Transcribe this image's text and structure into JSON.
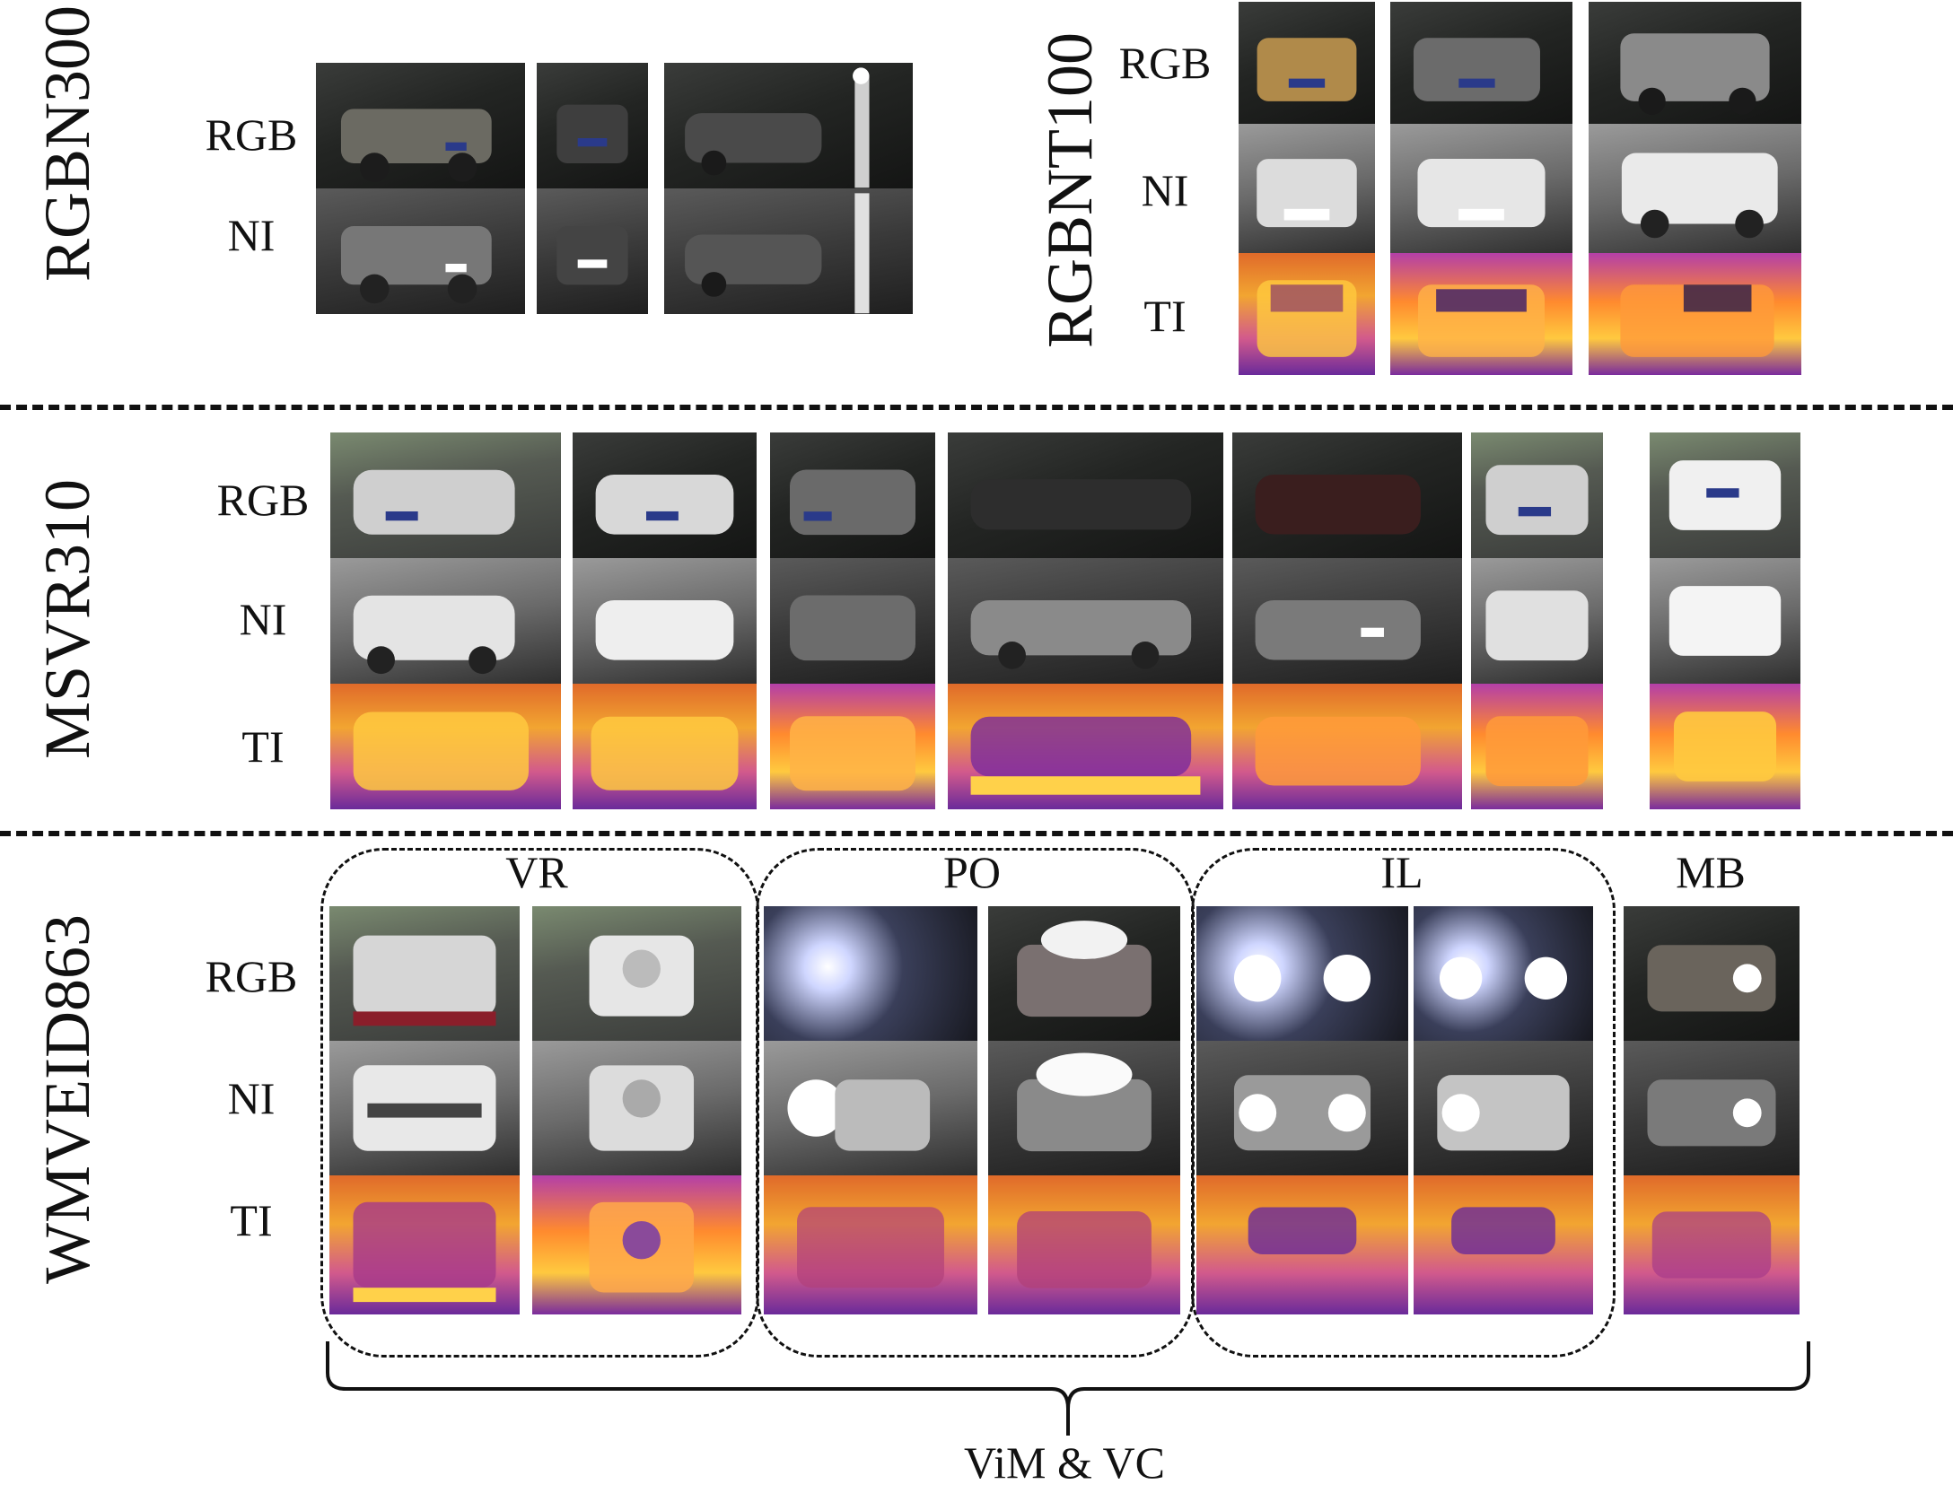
{
  "datasets": {
    "rgbn300": "RGBN300",
    "rgbnt100": "RGBNT100",
    "msvr310": "MSVR310",
    "wmveid863": "WMVEID863"
  },
  "modalities": {
    "rgb": "RGB",
    "ni": "NI",
    "ti": "TI"
  },
  "groups": {
    "vr": "VR",
    "po": "PO",
    "il": "IL",
    "mb": "MB"
  },
  "brace_label": "ViM & VC",
  "colors": {
    "thermal_hot": "#ffc93f",
    "thermal_mid": "#f2852e",
    "thermal_cold": "#6a2a9a",
    "line": "#111111"
  }
}
